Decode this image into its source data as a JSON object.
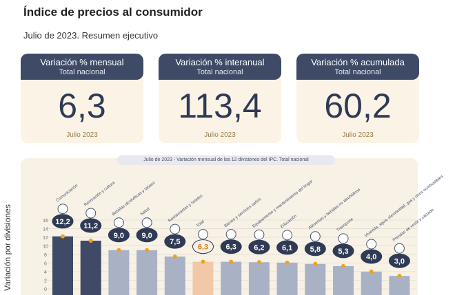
{
  "header": {
    "title": "Índice de precios al consumidor",
    "subtitle": "Julio de 2023. Resumen ejecutivo"
  },
  "cards": [
    {
      "label": "Variación % mensual",
      "sub": "Total nacional",
      "value": "6,3",
      "foot": "Julio 2023"
    },
    {
      "label": "Variación % interanual",
      "sub": "Total nacional",
      "value": "113,4",
      "foot": "Julio 2023"
    },
    {
      "label": "Variación % acumulada",
      "sub": "Total nacional",
      "value": "60,2",
      "foot": "Julio 2023"
    }
  ],
  "colors": {
    "dark_bar": "#3e4a66",
    "light_bar": "#a9b2c4",
    "total_bar": "#f1c9a6",
    "dot": "#f0a21d",
    "bubble": "#2f3a55"
  },
  "chart_data": {
    "type": "bar",
    "title": "Julio de 2023 - Variación mensual de las 12 divisiones del IPC. Total nacional",
    "ylabel": "Variación por divisiones",
    "yticks": [
      "0",
      "2",
      "4",
      "6",
      "8",
      "10",
      "12",
      "14",
      "16"
    ],
    "ylim": [
      0,
      16
    ],
    "categories": [
      "Comunicación",
      "Recreación y cultura",
      "Bebidas alcohólicas y tabaco",
      "Salud",
      "Restaurantes y hoteles",
      "Total",
      "Bienes y servicios varios",
      "Equipamiento y mantenimiento del hogar",
      "Educación",
      "Alimentos y bebidas no alcohólicas",
      "Transporte",
      "Vivienda, agua, electricidad, gas y otros combustibles",
      "Prendas de vestir y calzado"
    ],
    "values": [
      12.2,
      11.2,
      9.0,
      9.0,
      7.5,
      6.3,
      6.3,
      6.2,
      6.1,
      5.8,
      5.3,
      4.0,
      3.0
    ],
    "value_labels": [
      "12,2",
      "11,2",
      "9,0",
      "9,0",
      "7,5",
      "6,3",
      "6,3",
      "6,2",
      "6,1",
      "5,8",
      "5,3",
      "4,0",
      "3,0"
    ],
    "bar_styles": [
      "dark",
      "dark",
      "light",
      "light",
      "light",
      "total",
      "light",
      "light",
      "light",
      "light",
      "light",
      "light",
      "light"
    ]
  }
}
